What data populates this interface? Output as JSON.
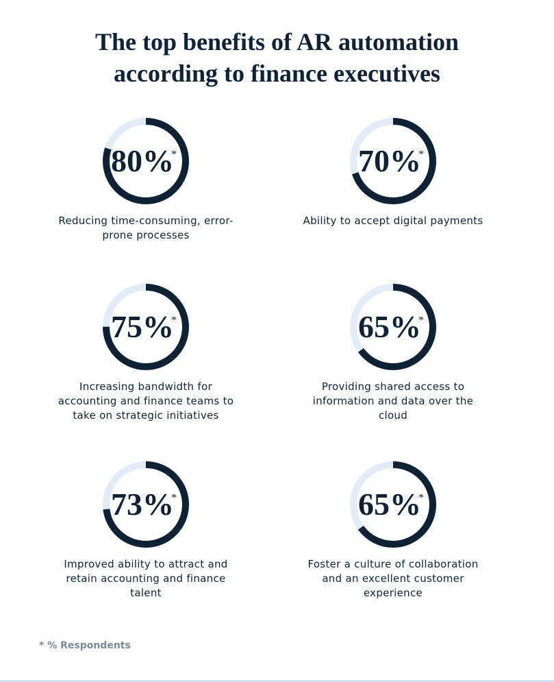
{
  "title": {
    "line1": "The top benefits of AR automation",
    "line2": "according to finance executives"
  },
  "chart_data": {
    "type": "donut",
    "unit": "%",
    "marker": "*",
    "items": [
      {
        "value": 80,
        "label": "80%",
        "caption": "Reducing time-consuming, error-prone processes"
      },
      {
        "value": 70,
        "label": "70%",
        "caption": "Ability to accept digital payments"
      },
      {
        "value": 75,
        "label": "75%",
        "caption": "Increasing bandwidth for accounting and finance teams to take on strategic initiatives"
      },
      {
        "value": 65,
        "label": "65%",
        "caption": "Providing shared access to information and data over the cloud"
      },
      {
        "value": 73,
        "label": "73%",
        "caption": "Improved ability to attract and retain accounting and finance talent"
      },
      {
        "value": 65,
        "label": "65%",
        "caption": "Foster a culture of collaboration and an excellent customer experience"
      }
    ]
  },
  "footnote": "* % Respondents",
  "colors": {
    "ring_fill": "#0f2233",
    "ring_track": "#e2ebf6",
    "text": "#0f2233",
    "footnote": "#7a8a96"
  }
}
